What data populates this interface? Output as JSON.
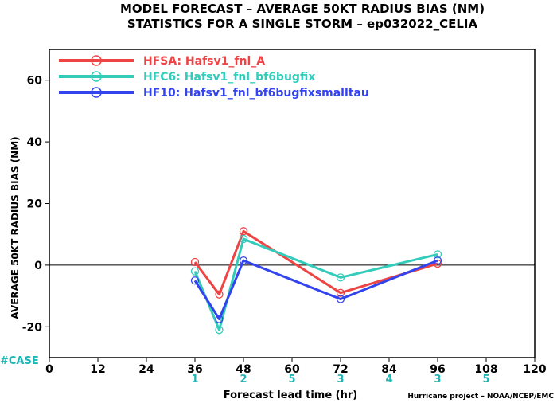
{
  "chart_data": {
    "type": "line",
    "title": "MODEL FORECAST – AVERAGE 50KT RADIUS BIAS (NM)",
    "subtitle": "STATISTICS FOR A SINGLE STORM – ep032022_CELIA",
    "xlabel": "Forecast lead time (hr)",
    "ylabel": "AVERAGE 50KT RADIUS BIAS (NM)",
    "xlim": [
      0,
      120
    ],
    "ylim": [
      -30,
      70
    ],
    "x_ticks": [
      0,
      12,
      24,
      36,
      48,
      60,
      72,
      84,
      96,
      108,
      120
    ],
    "y_ticks": [
      -20,
      0,
      20,
      40,
      60
    ],
    "zero_line": true,
    "grid": false,
    "legend_position": "top-left",
    "case_label": "#CASE",
    "case_counts": [
      {
        "x": 36,
        "n": "1"
      },
      {
        "x": 48,
        "n": "2"
      },
      {
        "x": 60,
        "n": "5"
      },
      {
        "x": 72,
        "n": "3"
      },
      {
        "x": 84,
        "n": "4"
      },
      {
        "x": 96,
        "n": "3"
      },
      {
        "x": 108,
        "n": "5"
      }
    ],
    "credit": "Hurricane project – NOAA/NCEP/EMC",
    "colors": {
      "case_text": "#1fb5b5",
      "zero_line": "#000000"
    },
    "series": [
      {
        "name": "HFSA: Hafsv1_fnl_A",
        "color": "#ee4444",
        "x": [
          36,
          42,
          48,
          72,
          96
        ],
        "y": [
          1,
          -9.5,
          11,
          -9,
          0.5
        ]
      },
      {
        "name": "HFC6: Hafsv1_fnl_bf6bugfix",
        "color": "#33ccbb",
        "x": [
          36,
          42,
          48,
          72,
          96
        ],
        "y": [
          -2,
          -21,
          8.5,
          -4,
          3.5
        ]
      },
      {
        "name": "HF10: Hafsv1_fnl_bf6bugfixsmalltau",
        "color": "#3344ee",
        "x": [
          36,
          42,
          48,
          72,
          96
        ],
        "y": [
          -5,
          -17.5,
          1.5,
          -11,
          1.5
        ]
      }
    ]
  }
}
